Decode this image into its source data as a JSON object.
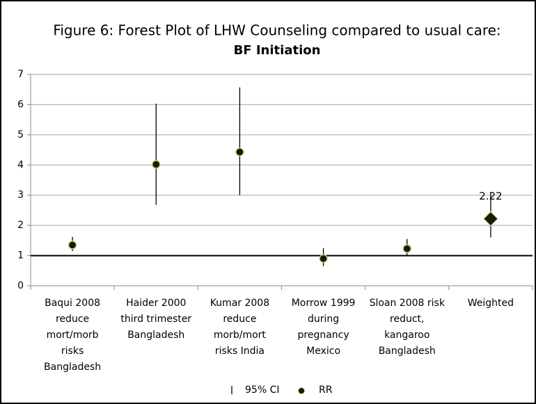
{
  "chart_data": {
    "type": "forest",
    "title": "Figure 6: Forest Plot of LHW Counseling compared to usual care:",
    "subtitle": "BF Initiation",
    "categories": [
      [
        "Baqui 2008",
        "reduce",
        "mort/morb",
        "risks",
        "Bangladesh"
      ],
      [
        "Haider 2000",
        "third trimester",
        "Bangladesh"
      ],
      [
        "Kumar 2008",
        "reduce",
        "morb/mort",
        "risks  India"
      ],
      [
        "Morrow 1999",
        "during",
        "pregnancy",
        "Mexico"
      ],
      [
        "Sloan 2008 risk",
        "reduct,",
        "kangaroo",
        "Bangladesh"
      ],
      [
        "Weighted"
      ]
    ],
    "series": [
      {
        "name": "95% CI",
        "color": "#000000",
        "low": [
          1.15,
          2.68,
          3.0,
          0.65,
          1.0,
          1.6
        ],
        "high": [
          1.62,
          6.03,
          6.57,
          1.25,
          1.55,
          3.1
        ]
      },
      {
        "name": "RR",
        "color": "#1a1a00",
        "markers": [
          "circle",
          "circle",
          "circle",
          "circle",
          "circle",
          "diamond"
        ],
        "values": [
          1.35,
          4.02,
          4.43,
          0.9,
          1.23,
          2.22
        ],
        "value_labels": [
          null,
          null,
          null,
          null,
          null,
          "2.22"
        ]
      }
    ],
    "reference_line": 1,
    "ylim": [
      0,
      7
    ],
    "yticks": [
      0,
      1,
      2,
      3,
      4,
      5,
      6,
      7
    ],
    "grid": true
  }
}
